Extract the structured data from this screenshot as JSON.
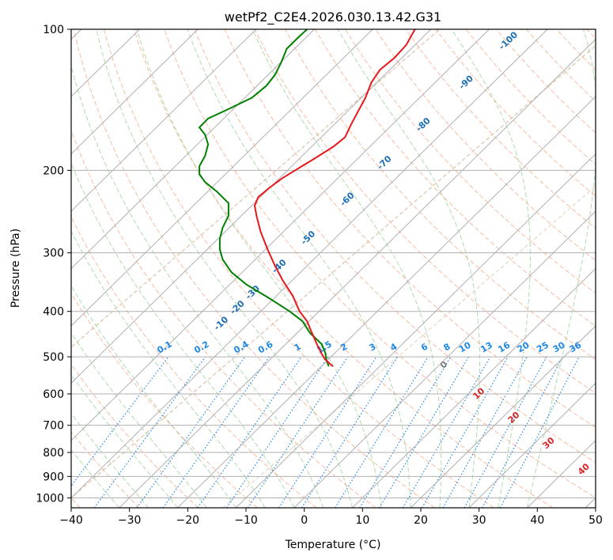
{
  "chart_data": {
    "type": "skew-t",
    "title": "wetPf2_C2E4.2026.030.13.42.G31",
    "xlabel": "Temperature (°C)",
    "ylabel": "Pressure (hPa)",
    "xlim": [
      -40,
      50
    ],
    "ylim_hpa": [
      1050,
      100
    ],
    "x_ticks": [
      {
        "value": -40,
        "label": "−40"
      },
      {
        "value": -30,
        "label": "−30"
      },
      {
        "value": -20,
        "label": "−20"
      },
      {
        "value": -10,
        "label": "−10"
      },
      {
        "value": 0,
        "label": "0"
      },
      {
        "value": 10,
        "label": "10"
      },
      {
        "value": 20,
        "label": "20"
      },
      {
        "value": 30,
        "label": "30"
      },
      {
        "value": 40,
        "label": "40"
      },
      {
        "value": 50,
        "label": "50"
      }
    ],
    "y_ticks": [
      {
        "value": 100,
        "label": "100"
      },
      {
        "value": 200,
        "label": "200"
      },
      {
        "value": 300,
        "label": "300"
      },
      {
        "value": 400,
        "label": "400"
      },
      {
        "value": 500,
        "label": "500"
      },
      {
        "value": 600,
        "label": "600"
      },
      {
        "value": 700,
        "label": "700"
      },
      {
        "value": 800,
        "label": "800"
      },
      {
        "value": 900,
        "label": "900"
      },
      {
        "value": 1000,
        "label": "1000"
      }
    ],
    "temperature_profile": {
      "name": "Temperature",
      "color": "#e8171c",
      "points": [
        [
          524,
          4.9
        ],
        [
          505,
          3.5
        ],
        [
          480,
          2.5
        ],
        [
          450,
          1.5
        ],
        [
          420,
          0.5
        ],
        [
          400,
          -0.8
        ],
        [
          370,
          -2
        ],
        [
          345,
          -3.6
        ],
        [
          320,
          -5
        ],
        [
          295,
          -6.3
        ],
        [
          270,
          -7.5
        ],
        [
          250,
          -8.2
        ],
        [
          238,
          -8.5
        ],
        [
          228,
          -7.9
        ],
        [
          218,
          -6
        ],
        [
          208,
          -3.8
        ],
        [
          198,
          -1
        ],
        [
          188,
          2
        ],
        [
          178,
          5
        ],
        [
          170,
          7
        ],
        [
          160,
          8
        ],
        [
          150,
          9.2
        ],
        [
          140,
          10.5
        ],
        [
          130,
          11.5
        ],
        [
          122,
          13
        ],
        [
          115,
          15.5
        ],
        [
          108,
          17.5
        ],
        [
          100,
          19
        ]
      ]
    },
    "dewpoint_profile": {
      "name": "Dewpoint",
      "color": "#008000",
      "points": [
        [
          524,
          4.2
        ],
        [
          508,
          3.8
        ],
        [
          490,
          3.6
        ],
        [
          470,
          3
        ],
        [
          445,
          1
        ],
        [
          420,
          -0.3
        ],
        [
          400,
          -2.5
        ],
        [
          375,
          -6
        ],
        [
          350,
          -10
        ],
        [
          330,
          -12.5
        ],
        [
          310,
          -14
        ],
        [
          295,
          -14.5
        ],
        [
          280,
          -14.5
        ],
        [
          265,
          -14
        ],
        [
          250,
          -13
        ],
        [
          235,
          -13
        ],
        [
          222,
          -15
        ],
        [
          212,
          -17
        ],
        [
          204,
          -18
        ],
        [
          196,
          -18
        ],
        [
          186,
          -17
        ],
        [
          176,
          -16.5
        ],
        [
          168,
          -17
        ],
        [
          162,
          -18
        ],
        [
          155,
          -16.5
        ],
        [
          148,
          -13
        ],
        [
          140,
          -9
        ],
        [
          132,
          -6.5
        ],
        [
          125,
          -5
        ],
        [
          118,
          -4
        ],
        [
          110,
          -3
        ],
        [
          104,
          -1
        ],
        [
          100,
          0.5
        ]
      ]
    },
    "dry_adiabat_labels": [
      "-100",
      "-90",
      "-80",
      "-70",
      "-60",
      "-50",
      "-40",
      "-30",
      "-20",
      "-10"
    ],
    "moist_adiabat_labels": [
      "0",
      "10",
      "20",
      "30",
      "40"
    ],
    "mixing_ratio_labels": [
      "0.1",
      "0.2",
      "0.4",
      "0.6",
      "1",
      "1.5",
      "2",
      "3",
      "4",
      "6",
      "8",
      "10",
      "13",
      "16",
      "20",
      "25",
      "30",
      "36"
    ],
    "colors": {
      "temperature": "#e8171c",
      "dewpoint": "#008000",
      "grid": "#b0b0b0",
      "dry_adiabat": "#f4a582",
      "moist_adiabat": "#8fcb8f",
      "mixing_ratio": "#1e88e5",
      "dry_label": "#1f6fb5",
      "moist_label": "#d62728",
      "hs_label": "#808080",
      "background_arc": "#d9c2a8"
    }
  }
}
